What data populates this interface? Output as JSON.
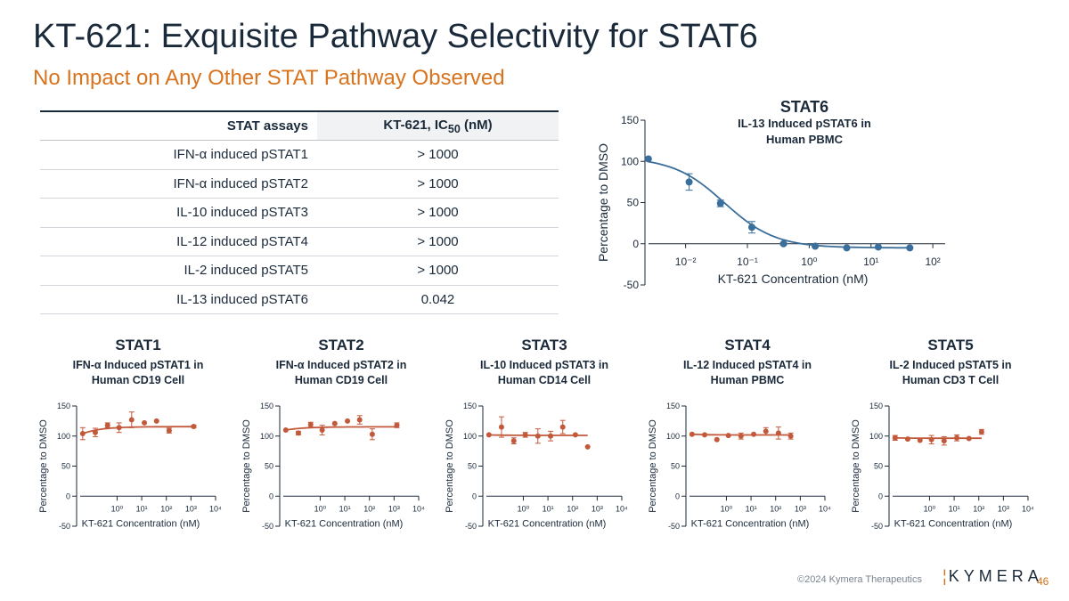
{
  "title": "KT-621: Exquisite Pathway Selectivity for STAT6",
  "subtitle": "No Impact on Any Other STAT Pathway Observed",
  "table": {
    "header": {
      "col1": "STAT assays",
      "col2_main": "KT-621, IC",
      "col2_sub": "50",
      "col2_unit": " (nM)"
    },
    "rows": [
      {
        "assay": "IFN-α induced pSTAT1",
        "ic50": "> 1000"
      },
      {
        "assay": "IFN-α induced pSTAT2",
        "ic50": "> 1000"
      },
      {
        "assay": "IL-10 induced pSTAT3",
        "ic50": "> 1000"
      },
      {
        "assay": "IL-12 induced pSTAT4",
        "ic50": "> 1000"
      },
      {
        "assay": "IL-2 induced pSTAT5",
        "ic50": "> 1000"
      },
      {
        "assay": "IL-13 induced pSTAT6",
        "ic50": "0.042"
      }
    ]
  },
  "colors": {
    "blue": "#3a6e9b",
    "orange": "#c2593b",
    "axis": "#1b2a3a",
    "accent": "#d8731e"
  },
  "chart_data": [
    {
      "id": "stat6",
      "type": "scatter",
      "title": "STAT6",
      "subtitle": [
        "IL-13 Induced pSTAT6 in",
        "Human PBMC"
      ],
      "xlabel": "KT-621 Concentration (nM)",
      "ylabel": "Percentage to DMSO",
      "xscale": "log",
      "xlim": [
        -2.6,
        2.2
      ],
      "ylim": [
        -50,
        150
      ],
      "yticks": [
        -50,
        0,
        50,
        100,
        150
      ],
      "xticks": [
        -2,
        -1,
        0,
        1,
        2
      ],
      "color": "#3a6e9b",
      "fit": true,
      "points": [
        {
          "x": 0.0025,
          "y": 103,
          "err": 0
        },
        {
          "x": 0.0114,
          "y": 75,
          "err": 10
        },
        {
          "x": 0.0366,
          "y": 49,
          "err": 4
        },
        {
          "x": 0.118,
          "y": 20,
          "err": 7
        },
        {
          "x": 0.384,
          "y": 0,
          "err": 1
        },
        {
          "x": 1.25,
          "y": -3,
          "err": 1
        },
        {
          "x": 4.05,
          "y": -5,
          "err": 0
        },
        {
          "x": 13.1,
          "y": -4,
          "err": 0
        },
        {
          "x": 42.5,
          "y": -5,
          "err": 0
        }
      ]
    },
    {
      "id": "stat1",
      "type": "scatter",
      "title": "STAT1",
      "subtitle": [
        "IFN-α Induced pSTAT1 in",
        "Human CD19 Cell"
      ],
      "xlabel": "KT-621 Concentration (nM)",
      "ylabel": "Percentage to DMSO",
      "xscale": "log",
      "xlim": [
        -1.5,
        4
      ],
      "ylim": [
        -50,
        150
      ],
      "yticks": [
        -50,
        0,
        50,
        100,
        150
      ],
      "xticks": [
        0,
        1,
        2,
        3,
        4
      ],
      "color": "#c2593b",
      "fit": true,
      "points": [
        {
          "x": 0.04,
          "y": 104,
          "err": 10
        },
        {
          "x": 0.13,
          "y": 106,
          "err": 7
        },
        {
          "x": 0.41,
          "y": 118,
          "err": 4
        },
        {
          "x": 1.2,
          "y": 114,
          "err": 8
        },
        {
          "x": 3.9,
          "y": 127,
          "err": 13
        },
        {
          "x": 12.8,
          "y": 122,
          "err": 0
        },
        {
          "x": 40,
          "y": 125,
          "err": 0
        },
        {
          "x": 130,
          "y": 109,
          "err": 4
        },
        {
          "x": 1300,
          "y": 116,
          "err": 2
        }
      ]
    },
    {
      "id": "stat2",
      "type": "scatter",
      "title": "STAT2",
      "subtitle": [
        "IFN-α Induced pSTAT2 in",
        "Human CD19 Cell"
      ],
      "xlabel": "KT-621 Concentration (nM)",
      "ylabel": "Percentage to DMSO",
      "xscale": "log",
      "xlim": [
        -1.5,
        4
      ],
      "ylim": [
        -50,
        150
      ],
      "yticks": [
        -50,
        0,
        50,
        100,
        150
      ],
      "xticks": [
        0,
        1,
        2,
        3,
        4
      ],
      "color": "#c2593b",
      "fit": true,
      "points": [
        {
          "x": 0.04,
          "y": 110,
          "err": 0
        },
        {
          "x": 0.13,
          "y": 105,
          "err": 3
        },
        {
          "x": 0.41,
          "y": 119,
          "err": 4
        },
        {
          "x": 1.2,
          "y": 110,
          "err": 8
        },
        {
          "x": 3.9,
          "y": 121,
          "err": 0
        },
        {
          "x": 12.8,
          "y": 125,
          "err": 0
        },
        {
          "x": 40,
          "y": 127,
          "err": 7
        },
        {
          "x": 130,
          "y": 103,
          "err": 9
        },
        {
          "x": 1300,
          "y": 118,
          "err": 4
        }
      ]
    },
    {
      "id": "stat3",
      "type": "scatter",
      "title": "STAT3",
      "subtitle": [
        "IL-10 Induced pSTAT3 in",
        "Human CD14 Cell"
      ],
      "xlabel": "KT-621 Concentration (nM)",
      "ylabel": "Percentage to DMSO",
      "xscale": "log",
      "xlim": [
        -1.5,
        4
      ],
      "ylim": [
        -50,
        150
      ],
      "yticks": [
        -50,
        0,
        50,
        100,
        150
      ],
      "xticks": [
        0,
        1,
        2,
        3,
        4
      ],
      "color": "#c2593b",
      "fit": true,
      "points": [
        {
          "x": 0.04,
          "y": 102,
          "err": 0
        },
        {
          "x": 0.13,
          "y": 115,
          "err": 17
        },
        {
          "x": 0.41,
          "y": 92,
          "err": 5
        },
        {
          "x": 1.2,
          "y": 102,
          "err": 4
        },
        {
          "x": 3.9,
          "y": 100,
          "err": 12
        },
        {
          "x": 12.8,
          "y": 100,
          "err": 8
        },
        {
          "x": 40,
          "y": 115,
          "err": 11
        },
        {
          "x": 130,
          "y": 102,
          "err": 0
        },
        {
          "x": 410,
          "y": 82,
          "err": 0
        }
      ]
    },
    {
      "id": "stat4",
      "type": "scatter",
      "title": "STAT4",
      "subtitle": [
        "IL-12 Induced pSTAT4 in",
        "Human PBMC"
      ],
      "xlabel": "KT-621 Concentration (nM)",
      "ylabel": "Percentage to DMSO",
      "xscale": "log",
      "xlim": [
        -1.5,
        4
      ],
      "ylim": [
        -50,
        150
      ],
      "yticks": [
        -50,
        0,
        50,
        100,
        150
      ],
      "xticks": [
        0,
        1,
        2,
        3,
        4
      ],
      "color": "#c2593b",
      "fit": true,
      "points": [
        {
          "x": 0.04,
          "y": 103,
          "err": 0
        },
        {
          "x": 0.13,
          "y": 102,
          "err": 0
        },
        {
          "x": 0.41,
          "y": 94,
          "err": 0
        },
        {
          "x": 1.2,
          "y": 101,
          "err": 0
        },
        {
          "x": 3.9,
          "y": 100,
          "err": 5
        },
        {
          "x": 12.8,
          "y": 103,
          "err": 0
        },
        {
          "x": 40,
          "y": 108,
          "err": 6
        },
        {
          "x": 130,
          "y": 105,
          "err": 10
        },
        {
          "x": 410,
          "y": 100,
          "err": 5
        }
      ]
    },
    {
      "id": "stat5",
      "type": "scatter",
      "title": "STAT5",
      "subtitle": [
        "IL-2 Induced pSTAT5 in",
        "Human CD3 T Cell"
      ],
      "xlabel": "KT-621 Concentration (nM)",
      "ylabel": "Percentage to DMSO",
      "xscale": "log",
      "xlim": [
        -1.5,
        4
      ],
      "ylim": [
        -50,
        150
      ],
      "yticks": [
        -50,
        0,
        50,
        100,
        150
      ],
      "xticks": [
        0,
        1,
        2,
        3,
        4
      ],
      "color": "#c2593b",
      "fit": true,
      "points": [
        {
          "x": 0.04,
          "y": 97,
          "err": 4
        },
        {
          "x": 0.13,
          "y": 95,
          "err": 0
        },
        {
          "x": 0.41,
          "y": 93,
          "err": 0
        },
        {
          "x": 1.2,
          "y": 94,
          "err": 7
        },
        {
          "x": 3.9,
          "y": 92,
          "err": 7
        },
        {
          "x": 12.8,
          "y": 97,
          "err": 5
        },
        {
          "x": 40,
          "y": 96,
          "err": 0
        },
        {
          "x": 130,
          "y": 107,
          "err": 4
        }
      ]
    }
  ],
  "footer": {
    "copyright": "©2024 Kymera Therapeutics",
    "logo_text": "KYMERA",
    "page": "46"
  }
}
